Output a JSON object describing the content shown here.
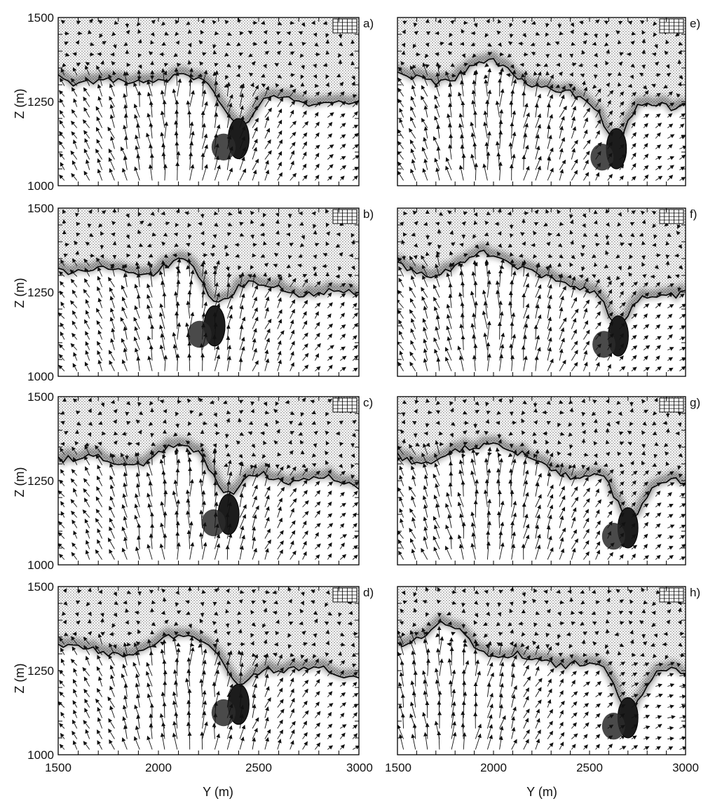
{
  "figure": {
    "panels": [
      {
        "label": "a)",
        "column": "left",
        "row": 0,
        "ridge_y": 2100,
        "ridge_z": 1360,
        "pocket_y": 2400,
        "pocket_z": 1140
      },
      {
        "label": "b)",
        "column": "left",
        "row": 1,
        "ridge_y": 2150,
        "ridge_z": 1380,
        "pocket_y": 2280,
        "pocket_z": 1150
      },
      {
        "label": "c)",
        "column": "left",
        "row": 2,
        "ridge_y": 2150,
        "ridge_z": 1390,
        "pocket_y": 2350,
        "pocket_z": 1150
      },
      {
        "label": "d)",
        "column": "left",
        "row": 3,
        "ridge_y": 2150,
        "ridge_z": 1400,
        "pocket_y": 2400,
        "pocket_z": 1150
      },
      {
        "label": "e)",
        "column": "right",
        "row": 0,
        "ridge_y": 2000,
        "ridge_z": 1400,
        "pocket_y": 2640,
        "pocket_z": 1110
      },
      {
        "label": "f)",
        "column": "right",
        "row": 1,
        "ridge_y": 2000,
        "ridge_z": 1400,
        "pocket_y": 2650,
        "pocket_z": 1120
      },
      {
        "label": "g)",
        "column": "right",
        "row": 2,
        "ridge_y": 2000,
        "ridge_z": 1400,
        "pocket_y": 2700,
        "pocket_z": 1110
      },
      {
        "label": "h)",
        "column": "right",
        "row": 3,
        "ridge_y": 1750,
        "ridge_z": 1400,
        "pocket_y": 2700,
        "pocket_z": 1110
      }
    ]
  },
  "chart_data": {
    "type": "scatter",
    "description_type": "contour-vector panels",
    "xlabel": "Y (m)",
    "ylabel": "Z (m)",
    "xlim": [
      1500,
      3000
    ],
    "ylim": [
      1000,
      1500
    ],
    "xticks": [
      "1500",
      "2000",
      "2500",
      "3000"
    ],
    "yticks": [
      "1000",
      "1250",
      "1500"
    ],
    "panel_labels": [
      "a)",
      "b)",
      "c)",
      "d)",
      "e)",
      "f)",
      "g)",
      "h)"
    ]
  },
  "colors": {
    "stipple": "#d4d4d4",
    "shadow": "#222222",
    "arrow": "#111111"
  }
}
